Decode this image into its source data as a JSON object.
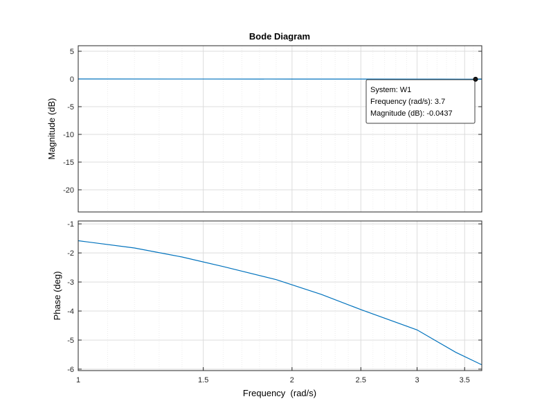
{
  "chart_data": [
    {
      "type": "line",
      "title": "Bode Diagram",
      "xlabel": "",
      "ylabel": "Magnitude (dB)",
      "xscale": "log",
      "xlim": [
        1,
        3.7
      ],
      "ylim": [
        -24,
        6
      ],
      "yticks": [
        5,
        0,
        -5,
        -10,
        -15,
        -20
      ],
      "grid": true,
      "series": [
        {
          "name": "W1",
          "color": "#0072BD",
          "x": [
            1,
            1.5,
            2,
            2.5,
            3,
            3.5,
            3.7
          ],
          "y": [
            -0.003,
            -0.007,
            -0.012,
            -0.019,
            -0.027,
            -0.038,
            -0.0437
          ]
        }
      ],
      "datatip": {
        "x": 3.7,
        "y": -0.0437,
        "lines": [
          "System: W1",
          "Frequency (rad/s): 3.7",
          "Magnitude (dB): -0.0437"
        ]
      }
    },
    {
      "type": "line",
      "title": "",
      "xlabel": "Frequency  (rad/s)",
      "ylabel": "Phase (deg)",
      "xscale": "log",
      "xlim": [
        1,
        3.7
      ],
      "ylim": [
        -6.05,
        -0.9
      ],
      "xticks": [
        1,
        1.5,
        2,
        2.5,
        3,
        3.5
      ],
      "xticklabels": [
        "1",
        "1.5",
        "2",
        "2.5",
        "3",
        "3.5"
      ],
      "yticks": [
        -1,
        -2,
        -3,
        -4,
        -5,
        -6
      ],
      "grid": true,
      "series": [
        {
          "name": "W1",
          "color": "#0072BD",
          "x": [
            1,
            1.2,
            1.4,
            1.6,
            1.9,
            2.2,
            2.5,
            3.0,
            3.4,
            3.7
          ],
          "y": [
            -1.58,
            -1.83,
            -2.14,
            -2.47,
            -2.92,
            -3.43,
            -3.95,
            -4.65,
            -5.42,
            -5.85
          ]
        }
      ]
    }
  ]
}
